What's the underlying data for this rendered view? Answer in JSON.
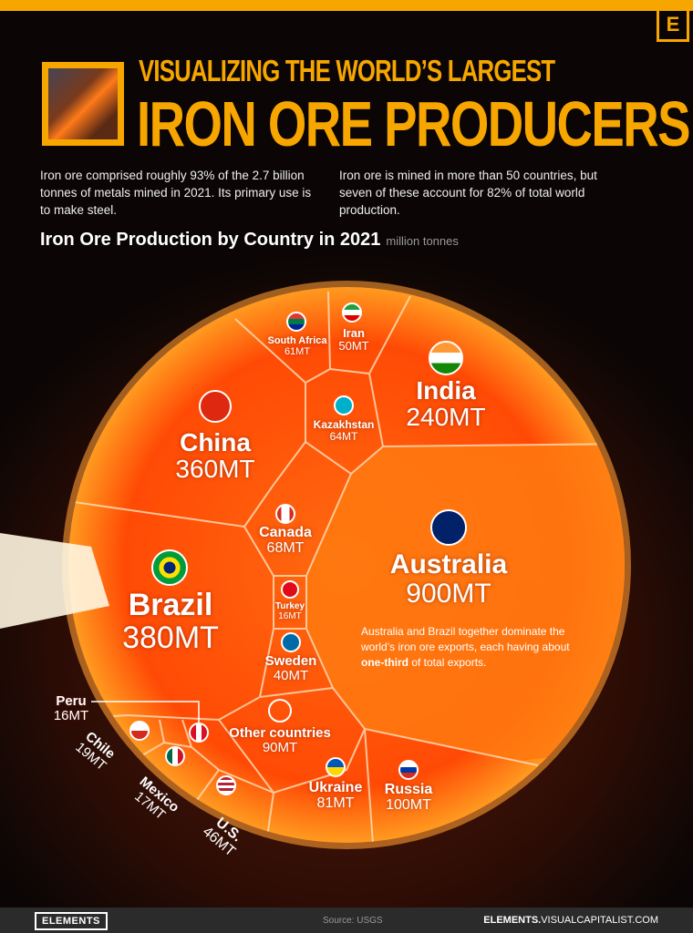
{
  "header": {
    "brand_icon": "E",
    "kicker": "VISUALIZING THE WORLD’S LARGEST",
    "title": "IRON ORE PRODUCERS"
  },
  "intro": {
    "left": "Iron ore comprised roughly 93% of the 2.7 billion tonnes of metals mined in 2021. Its primary use is to make steel.",
    "right": "Iron ore is mined in more than 50 countries, but seven of these account for 82% of total world production."
  },
  "chart_data": {
    "type": "voronoi",
    "title": "Iron Ore Production by Country in 2021",
    "unit": "million tonnes",
    "categories": [
      "Australia",
      "Brazil",
      "China",
      "India",
      "Russia",
      "Other countries",
      "Ukraine",
      "Canada",
      "Kazakhstan",
      "South Africa",
      "Iran",
      "U.S.",
      "Sweden",
      "Chile",
      "Mexico",
      "Peru",
      "Turkey"
    ],
    "values": [
      900,
      380,
      360,
      240,
      100,
      90,
      81,
      68,
      64,
      61,
      50,
      46,
      40,
      19,
      17,
      16,
      16
    ],
    "labels": [
      "900MT",
      "380MT",
      "360MT",
      "240MT",
      "100MT",
      "90MT",
      "81MT",
      "68MT",
      "64MT",
      "61MT",
      "50MT",
      "46MT",
      "40MT",
      "19MT",
      "17MT",
      "16MT",
      "16MT"
    ],
    "colors": {
      "cell": "#ff5a0a",
      "australia": "#ff7a10",
      "border": "#ffd9b0"
    }
  },
  "annotation": {
    "pre": "Australia and Brazil together dominate the world’s iron ore exports, each having about ",
    "bold": "one-third",
    "post": " of total exports."
  },
  "footer": {
    "logo": "ELEMENTS",
    "source": "Source: USGS",
    "url_bold": "ELEMENTS.",
    "url_rest": "VISUALCAPITALIST.COM"
  }
}
